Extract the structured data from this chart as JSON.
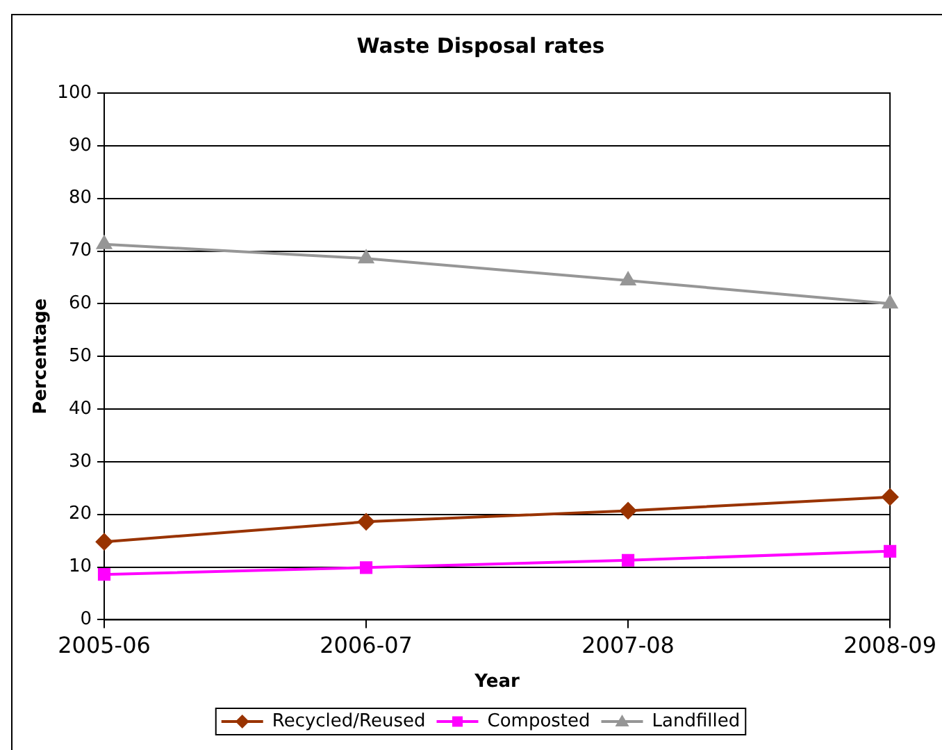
{
  "chart_data": {
    "type": "line",
    "title": "Waste Disposal rates",
    "xlabel": "Year",
    "ylabel": "Percentage",
    "categories": [
      "2005-06",
      "2006-07",
      "2007-08",
      "2008-09"
    ],
    "series": [
      {
        "name": "Recycled/Reused",
        "color": "#993300",
        "marker": "diamond",
        "values": [
          14.8,
          18.6,
          20.7,
          23.3
        ]
      },
      {
        "name": "Composted",
        "color": "#ff00ff",
        "marker": "square",
        "values": [
          8.6,
          9.9,
          11.3,
          13.0
        ]
      },
      {
        "name": "Landfilled",
        "color": "#969696",
        "marker": "triangle",
        "values": [
          71.3,
          68.6,
          64.4,
          60.0
        ]
      }
    ],
    "ylim": [
      0,
      100
    ],
    "yticks": [
      0,
      10,
      20,
      30,
      40,
      50,
      60,
      70,
      80,
      90,
      100
    ],
    "grid": "y",
    "legend": "bottom"
  }
}
